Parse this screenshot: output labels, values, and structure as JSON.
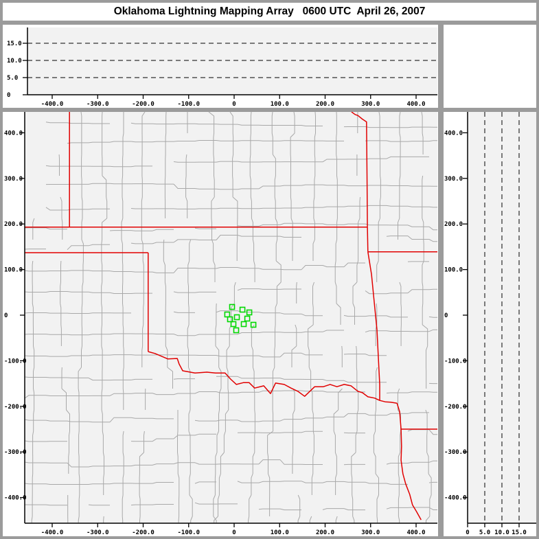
{
  "title": "Oklahoma Lightning Mapping Array   0600 UTC  April 26, 2007",
  "colors": {
    "frame_gray": "#9b9b9b",
    "panel_white": "#ffffff",
    "plot_bg": "#f2f2f2",
    "axis_black": "#000000",
    "county_gray": "#a8a8a8",
    "state_border_red": "#e10000",
    "station_green": "#00d800"
  },
  "chart_data": [
    {
      "id": "altitude-vs-east-west",
      "type": "scatter",
      "description": "upper panel: altitude (km) vs east-west distance (km), no lightning sources plotted",
      "xlim": [
        -455,
        448
      ],
      "ylim": [
        0,
        19.6
      ],
      "xticks": [
        {
          "v": -400,
          "label": "-400.0"
        },
        {
          "v": -300,
          "label": "-300.0"
        },
        {
          "v": -200,
          "label": "-200.0"
        },
        {
          "v": -100,
          "label": "-100.0"
        },
        {
          "v": 0,
          "label": "0"
        },
        {
          "v": 100,
          "label": "100.0"
        },
        {
          "v": 200,
          "label": "200.0"
        },
        {
          "v": 300,
          "label": "300.0"
        },
        {
          "v": 400,
          "label": "400.0"
        }
      ],
      "yticks": [
        {
          "v": 0,
          "label": "0"
        },
        {
          "v": 5,
          "label": "5.0"
        },
        {
          "v": 10,
          "label": "10.0"
        },
        {
          "v": 15,
          "label": "15.0"
        }
      ],
      "grid_dashed_y": [
        5,
        10,
        15
      ],
      "points": []
    },
    {
      "id": "plan-view-map",
      "type": "scatter",
      "description": "main panel: plan view map, north-south vs east-west distance (km); green squares are LMA stations; red lines are state borders; gray lines are county borders",
      "xlim": [
        -460,
        447
      ],
      "ylim": [
        -450,
        446
      ],
      "xticks": [
        {
          "v": -400,
          "label": "-400.0"
        },
        {
          "v": -300,
          "label": "-300.0"
        },
        {
          "v": -200,
          "label": "-200.0"
        },
        {
          "v": -100,
          "label": "-100.0"
        },
        {
          "v": 0,
          "label": "0"
        },
        {
          "v": 100,
          "label": "100.0"
        },
        {
          "v": 200,
          "label": "200.0"
        },
        {
          "v": 300,
          "label": "300.0"
        },
        {
          "v": 400,
          "label": "400.0"
        }
      ],
      "yticks": [
        {
          "v": 400,
          "label": "400.0"
        },
        {
          "v": 300,
          "label": "300.0"
        },
        {
          "v": 200,
          "label": "200.0"
        },
        {
          "v": 100,
          "label": "100.0"
        },
        {
          "v": 0,
          "label": "0"
        },
        {
          "v": -100,
          "label": "-100.0"
        },
        {
          "v": -200,
          "label": "-200.0"
        },
        {
          "v": -300,
          "label": "-300.0"
        },
        {
          "v": -400,
          "label": "-400.0"
        }
      ],
      "stations_km": [
        [
          -4.5,
          18.1
        ],
        [
          18.2,
          12.0
        ],
        [
          33.3,
          6.0
        ],
        [
          -15.2,
          1.5
        ],
        [
          6.1,
          -4.5
        ],
        [
          -9.1,
          -9.0
        ],
        [
          28.8,
          -7.5
        ],
        [
          -1.5,
          -19.6
        ],
        [
          21.2,
          -19.6
        ],
        [
          42.4,
          -21.1
        ],
        [
          4.5,
          -33.1
        ]
      ],
      "state_borders_km": [
        [
          [
            -362,
            446
          ],
          [
            -362,
            193
          ]
        ],
        [
          [
            -460,
            193
          ],
          [
            293,
            193
          ]
        ],
        [
          [
            258,
            446
          ],
          [
            266,
            440
          ],
          [
            272,
            438
          ],
          [
            282,
            430
          ],
          [
            291,
            424
          ],
          [
            292,
            310
          ],
          [
            293,
            193
          ]
        ],
        [
          [
            293,
            193
          ],
          [
            294,
            139
          ]
        ],
        [
          [
            294,
            139
          ],
          [
            447,
            139
          ]
        ],
        [
          [
            294,
            139
          ],
          [
            302,
            89
          ],
          [
            308,
            29
          ],
          [
            314,
            -32
          ],
          [
            317,
            -92
          ],
          [
            320,
            -152
          ],
          [
            320,
            -187
          ]
        ],
        [
          [
            -460,
            137
          ],
          [
            -189,
            137
          ]
        ],
        [
          [
            -189,
            137
          ],
          [
            -189,
            -80
          ]
        ],
        [
          [
            -189,
            -80
          ],
          [
            -174,
            -84
          ],
          [
            -146,
            -96
          ],
          [
            -125,
            -95
          ],
          [
            -121,
            -107
          ],
          [
            -113,
            -122
          ],
          [
            -86,
            -127
          ],
          [
            -60,
            -125
          ],
          [
            -41,
            -127
          ],
          [
            -20,
            -127
          ],
          [
            -8,
            -140
          ],
          [
            5,
            -152
          ],
          [
            20,
            -148
          ],
          [
            33,
            -148
          ],
          [
            45,
            -160
          ],
          [
            65,
            -155
          ],
          [
            80,
            -172
          ],
          [
            91,
            -149
          ],
          [
            110,
            -152
          ],
          [
            125,
            -160
          ],
          [
            140,
            -167
          ],
          [
            155,
            -178
          ],
          [
            177,
            -157
          ],
          [
            196,
            -157
          ],
          [
            211,
            -152
          ],
          [
            226,
            -157
          ],
          [
            242,
            -152
          ],
          [
            257,
            -155
          ],
          [
            272,
            -167
          ],
          [
            282,
            -170
          ],
          [
            294,
            -179
          ],
          [
            309,
            -182
          ],
          [
            320,
            -187
          ],
          [
            332,
            -190
          ],
          [
            344,
            -191
          ],
          [
            358,
            -193
          ]
        ],
        [
          [
            358,
            -193
          ],
          [
            364,
            -212
          ],
          [
            367,
            -250
          ]
        ],
        [
          [
            367,
            -250
          ],
          [
            447,
            -250
          ]
        ],
        [
          [
            367,
            -250
          ],
          [
            368,
            -288
          ],
          [
            367,
            -318
          ],
          [
            371,
            -348
          ],
          [
            377,
            -370
          ],
          [
            386,
            -393
          ],
          [
            392,
            -416
          ],
          [
            401,
            -431
          ],
          [
            411,
            -449
          ]
        ]
      ],
      "county_mesh": {
        "cell": 31,
        "seed": 1234
      }
    },
    {
      "id": "altitude-vs-north-south",
      "type": "scatter",
      "description": "right panel: north-south distance (km) vs altitude (km), no lightning sources plotted",
      "xlim": [
        0,
        20
      ],
      "ylim": [
        -450,
        446
      ],
      "xticks": [
        {
          "v": 0,
          "label": "0"
        },
        {
          "v": 5,
          "label": "5.0"
        },
        {
          "v": 10,
          "label": "10.0"
        },
        {
          "v": 15,
          "label": "15.0"
        }
      ],
      "yticks": [
        {
          "v": 400,
          "label": "400.0"
        },
        {
          "v": 300,
          "label": "300.0"
        },
        {
          "v": 200,
          "label": "200.0"
        },
        {
          "v": 100,
          "label": "100.0"
        },
        {
          "v": 0,
          "label": "0"
        },
        {
          "v": -100,
          "label": "-100.0"
        },
        {
          "v": -200,
          "label": "-200.0"
        },
        {
          "v": -300,
          "label": "-300.0"
        },
        {
          "v": -400,
          "label": "-400.0"
        }
      ],
      "grid_dashed_x": [
        5,
        10,
        15
      ],
      "points": []
    }
  ]
}
